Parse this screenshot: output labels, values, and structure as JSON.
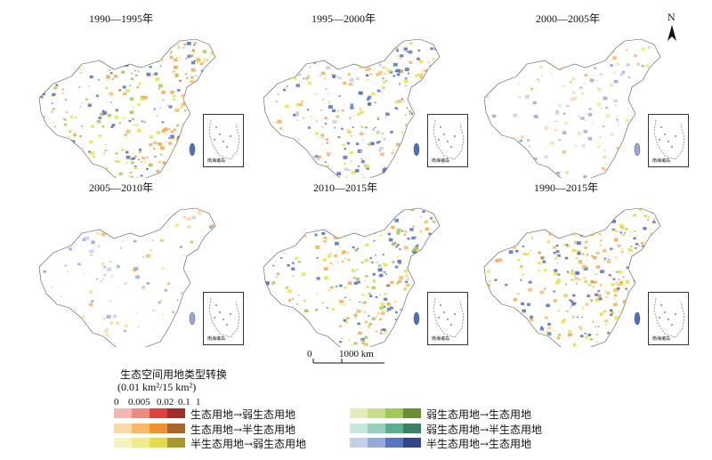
{
  "panels": [
    {
      "title": "1990—1995年",
      "inset_label": "南海诸岛"
    },
    {
      "title": "1995—2000年",
      "inset_label": "南海诸岛"
    },
    {
      "title": "2000—2005年",
      "inset_label": "南海诸岛"
    },
    {
      "title": "2005—2010年",
      "inset_label": "南海诸岛"
    },
    {
      "title": "2010—2015年",
      "inset_label": "南海诸岛"
    },
    {
      "title": "1990—2015年",
      "inset_label": "南海诸岛"
    }
  ],
  "north_arrow": {
    "label": "N",
    "icon": "north-arrow-icon"
  },
  "scale_bar": {
    "zero": "0",
    "max": "1000 km"
  },
  "legend": {
    "title": "生态空间用地类型转换",
    "unit": "(0.01 km²/15 km²)",
    "ticks": [
      "0",
      "0.005",
      "0.02",
      "0.1",
      "1"
    ],
    "rows": [
      {
        "label": "生态用地→弱生态用地",
        "colors": [
          "#f5b7b1",
          "#ef8a80",
          "#e04040",
          "#a32b2b"
        ]
      },
      {
        "label": "生态用地→半生态用地",
        "colors": [
          "#fcd9a8",
          "#f7b86a",
          "#ef9330",
          "#a9662a"
        ]
      },
      {
        "label": "半生态用地→弱生态用地",
        "colors": [
          "#f6f3c0",
          "#efeb8e",
          "#e3dc4f",
          "#a49a2f"
        ]
      },
      {
        "label": "弱生态用地→生态用地",
        "colors": [
          "#e2ecbe",
          "#c7df8c",
          "#9fca55",
          "#6b8e30"
        ]
      },
      {
        "label": "弱生态用地→半生态用地",
        "colors": [
          "#c9e8dd",
          "#97d1bc",
          "#58b08e",
          "#3d7f64"
        ]
      },
      {
        "label": "半生态用地→生态用地",
        "colors": [
          "#c6cfe8",
          "#98a9d9",
          "#5a74c0",
          "#33468a"
        ]
      }
    ]
  },
  "colors": {
    "land": "#ffffff",
    "border": "#555555",
    "accent_orange": "#f2a84b",
    "accent_blue": "#4d6fbf",
    "accent_yellow": "#e8e24a"
  }
}
